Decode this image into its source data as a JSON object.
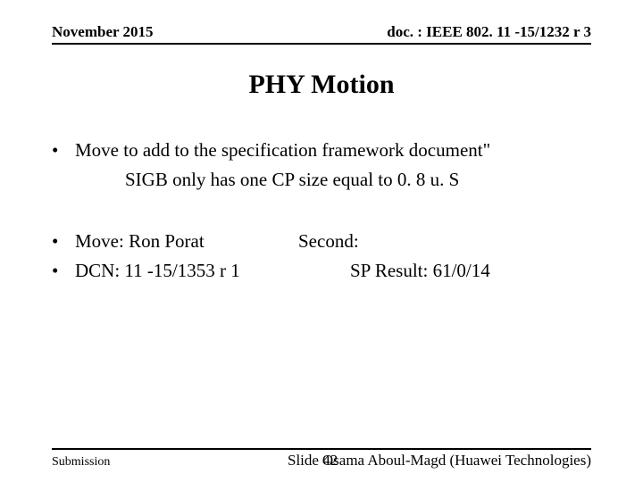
{
  "header": {
    "date": "November 2015",
    "docref": "doc. : IEEE 802. 11 -15/1232 r 3"
  },
  "title": "PHY Motion",
  "bullets": {
    "main_line1": "Move to add to the specification framework document\"",
    "main_line2": "SIGB only has one CP size equal to 0. 8 u. S",
    "move": "Move: Ron Porat",
    "second": "Second:",
    "dcn": "DCN: 11 -15/1353 r 1",
    "sp_result": "SP Result: 61/0/14"
  },
  "footer": {
    "submission": "Submission",
    "slide": "Slide 42",
    "author": "Osama Aboul-Magd (Huawei Technologies)"
  },
  "style": {
    "title_fontsize": 30,
    "body_fontsize": 21,
    "header_fontsize": 17,
    "footer_fontsize": 17,
    "rule_color": "#000000",
    "background_color": "#ffffff",
    "text_color": "#000000",
    "font_family": "Times New Roman"
  }
}
